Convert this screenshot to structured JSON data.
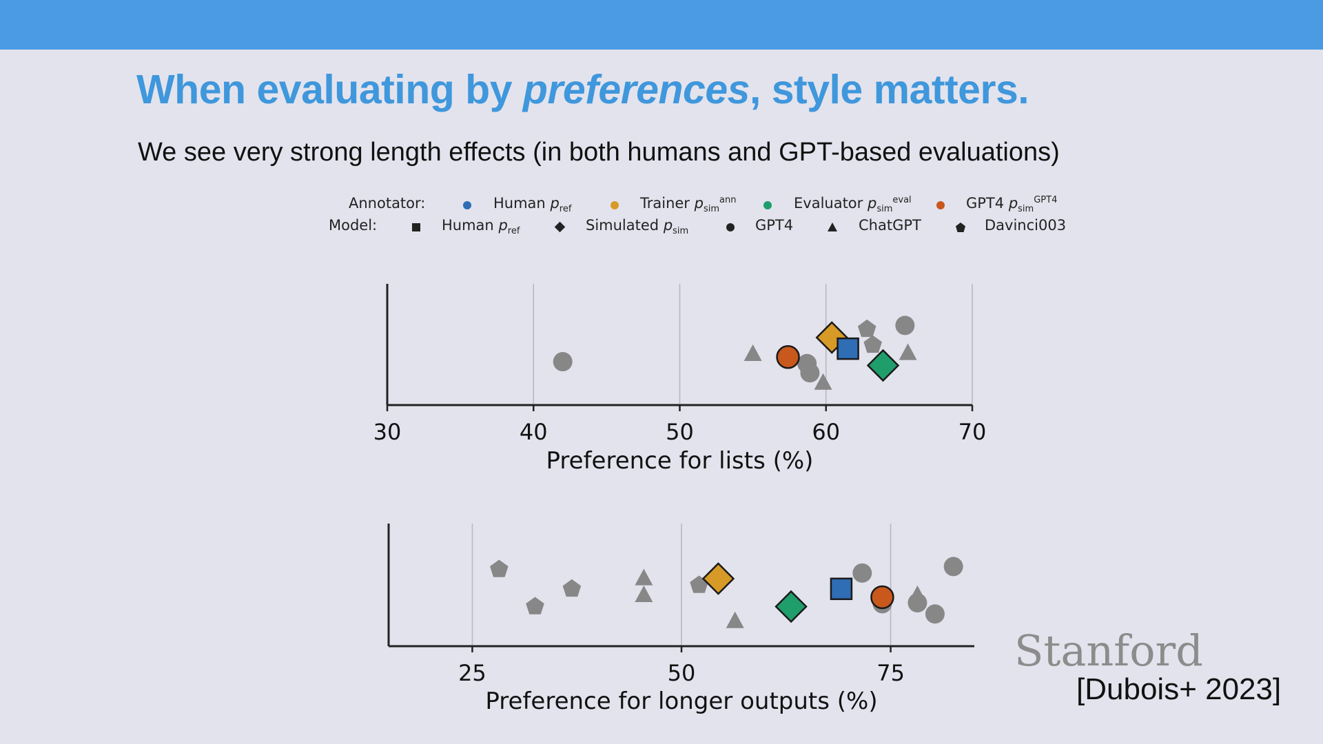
{
  "slide": {
    "title_part1": "When evaluating by ",
    "title_emph": "preferences",
    "title_part2": ", style matters.",
    "subtitle": "We see very strong length effects (in both humans and GPT-based evaluations)",
    "logo_text": "Stanford",
    "citation": "[Dubois+ 2023]",
    "colors": {
      "topbar": "#4a9be4",
      "title": "#3f97dc",
      "background": "#e3e3ed"
    }
  },
  "legend": {
    "annotator_label": "Annotator:",
    "model_label": "Model:",
    "annotators": [
      {
        "name": "Human",
        "var": "p",
        "sub": "ref",
        "sup": "",
        "color": "#2f6db5"
      },
      {
        "name": "Trainer",
        "var": "p",
        "sub": "sim",
        "sup": "ann",
        "color": "#d79a26"
      },
      {
        "name": "Evaluator",
        "var": "p",
        "sub": "sim",
        "sup": "eval",
        "color": "#1f9e6b"
      },
      {
        "name": "GPT4",
        "var": "p",
        "sub": "sim",
        "sup": "GPT4",
        "color": "#c8581c"
      }
    ],
    "models": [
      {
        "name": "Human",
        "var": "p",
        "sub": "ref",
        "marker": "square"
      },
      {
        "name": "Simulated",
        "var": "p",
        "sub": "sim",
        "marker": "diamond"
      },
      {
        "name": "GPT4",
        "var": "",
        "sub": "",
        "marker": "circle"
      },
      {
        "name": "ChatGPT",
        "var": "",
        "sub": "",
        "marker": "triangle"
      },
      {
        "name": "Davinci003",
        "var": "",
        "sub": "",
        "marker": "pentagon"
      }
    ]
  },
  "chart_data": [
    {
      "type": "scatter",
      "xlabel": "Preference for lists (%)",
      "ylabel": "",
      "xlim": [
        30,
        70
      ],
      "ylim": [
        0,
        1
      ],
      "xticks": [
        30,
        40,
        50,
        60,
        70
      ],
      "grid": "vertical",
      "points": [
        {
          "x": 42.0,
          "y": 0.37,
          "marker": "circle",
          "annotator": "none"
        },
        {
          "x": 55.0,
          "y": 0.46,
          "marker": "triangle",
          "annotator": "none"
        },
        {
          "x": 58.7,
          "y": 0.35,
          "marker": "circle",
          "annotator": "none"
        },
        {
          "x": 58.9,
          "y": 0.25,
          "marker": "circle",
          "annotator": "none"
        },
        {
          "x": 59.8,
          "y": 0.15,
          "marker": "triangle",
          "annotator": "none"
        },
        {
          "x": 62.8,
          "y": 0.72,
          "marker": "pentagon",
          "annotator": "none"
        },
        {
          "x": 63.2,
          "y": 0.55,
          "marker": "pentagon",
          "annotator": "none"
        },
        {
          "x": 65.4,
          "y": 0.76,
          "marker": "circle",
          "annotator": "none"
        },
        {
          "x": 65.6,
          "y": 0.47,
          "marker": "triangle",
          "annotator": "none"
        },
        {
          "x": 57.4,
          "y": 0.42,
          "marker": "circle",
          "annotator": "GPT4"
        },
        {
          "x": 60.4,
          "y": 0.63,
          "marker": "diamond",
          "annotator": "Trainer"
        },
        {
          "x": 61.5,
          "y": 0.51,
          "marker": "square",
          "annotator": "Human"
        },
        {
          "x": 63.9,
          "y": 0.33,
          "marker": "diamond",
          "annotator": "Evaluator"
        }
      ]
    },
    {
      "type": "scatter",
      "xlabel": "Preference for longer outputs (%)",
      "ylabel": "",
      "xlim": [
        15,
        85
      ],
      "ylim": [
        0,
        1
      ],
      "xticks": [
        25,
        50,
        75
      ],
      "grid": "vertical",
      "points": [
        {
          "x": 28.2,
          "y": 0.73,
          "marker": "pentagon",
          "annotator": "none"
        },
        {
          "x": 32.5,
          "y": 0.33,
          "marker": "pentagon",
          "annotator": "none"
        },
        {
          "x": 36.9,
          "y": 0.52,
          "marker": "pentagon",
          "annotator": "none"
        },
        {
          "x": 45.5,
          "y": 0.64,
          "marker": "triangle",
          "annotator": "none"
        },
        {
          "x": 45.5,
          "y": 0.46,
          "marker": "triangle",
          "annotator": "none"
        },
        {
          "x": 52.1,
          "y": 0.56,
          "marker": "pentagon",
          "annotator": "none"
        },
        {
          "x": 56.4,
          "y": 0.18,
          "marker": "triangle",
          "annotator": "none"
        },
        {
          "x": 71.6,
          "y": 0.69,
          "marker": "circle",
          "annotator": "none"
        },
        {
          "x": 74.0,
          "y": 0.36,
          "marker": "circle",
          "annotator": "none"
        },
        {
          "x": 78.2,
          "y": 0.46,
          "marker": "triangle",
          "annotator": "none"
        },
        {
          "x": 78.2,
          "y": 0.37,
          "marker": "circle",
          "annotator": "none"
        },
        {
          "x": 80.3,
          "y": 0.25,
          "marker": "circle",
          "annotator": "none"
        },
        {
          "x": 82.5,
          "y": 0.76,
          "marker": "circle",
          "annotator": "none"
        },
        {
          "x": 54.4,
          "y": 0.63,
          "marker": "diamond",
          "annotator": "Trainer"
        },
        {
          "x": 63.1,
          "y": 0.33,
          "marker": "diamond",
          "annotator": "Evaluator"
        },
        {
          "x": 69.1,
          "y": 0.52,
          "marker": "square",
          "annotator": "Human"
        },
        {
          "x": 74.0,
          "y": 0.43,
          "marker": "circle",
          "annotator": "GPT4"
        }
      ]
    }
  ]
}
